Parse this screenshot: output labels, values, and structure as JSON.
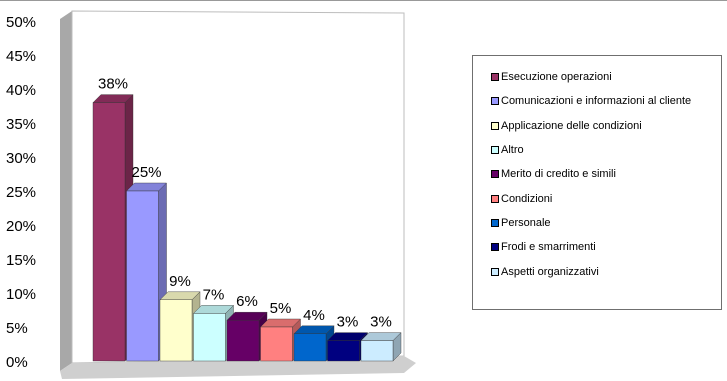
{
  "chart_data": {
    "type": "bar",
    "categories": [
      "Esecuzione operazioni",
      "Comunicazioni e informazioni al cliente",
      "Applicazione delle condizioni",
      "Altro",
      "Merito di credito e simili",
      "Condizioni",
      "Personale",
      "Frodi e smarrimenti",
      "Aspetti organizzativi"
    ],
    "values": [
      38,
      25,
      9,
      7,
      6,
      5,
      4,
      3,
      3
    ],
    "value_labels": [
      "38%",
      "25%",
      "9%",
      "7%",
      "6%",
      "5%",
      "4%",
      "3%",
      "3%"
    ],
    "colors": [
      "#993366",
      "#9999ff",
      "#ffffcc",
      "#ccffff",
      "#660066",
      "#ff8080",
      "#0066cc",
      "#000080",
      "#ccecff"
    ],
    "y_ticks": [
      "0%",
      "5%",
      "10%",
      "15%",
      "20%",
      "25%",
      "30%",
      "35%",
      "40%",
      "45%",
      "50%"
    ],
    "ylim": [
      0,
      50
    ],
    "title": "",
    "xlabel": "",
    "ylabel": "",
    "grid": false,
    "style": "3d",
    "legend_position": "right"
  }
}
